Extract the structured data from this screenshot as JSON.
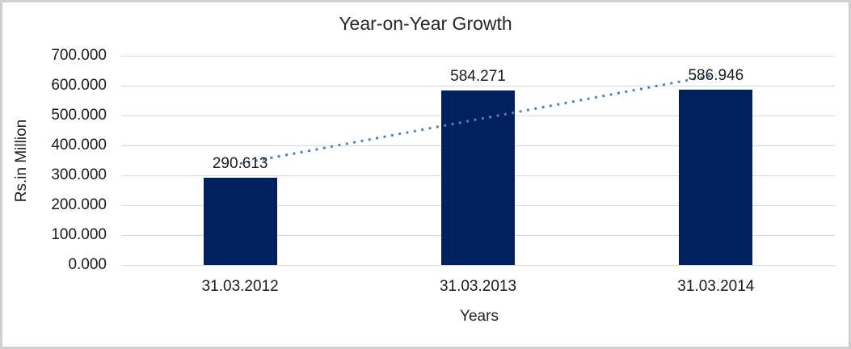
{
  "chart_data": {
    "type": "bar",
    "title": "Year-on-Year Growth",
    "xlabel": "Years",
    "ylabel": "Rs.in Million",
    "categories": [
      "31.03.2012",
      "31.03.2013",
      "31.03.2014"
    ],
    "values": [
      290.613,
      584.271,
      586.946
    ],
    "data_labels": [
      "290.613",
      "584.271",
      "586.946"
    ],
    "ylim": [
      0,
      700
    ],
    "ytick_interval": 100,
    "ytick_labels": [
      "0.000",
      "100.000",
      "200.000",
      "300.000",
      "400.000",
      "500.000",
      "600.000",
      "700.000"
    ],
    "grid": "horizontal",
    "legend_position": "none",
    "trendline": {
      "type": "linear",
      "style": "dotted",
      "fit_values_at_first_and_last_category": [
        339.1,
        635.4
      ]
    },
    "colors": {
      "bar": "#002060",
      "trendline": "#4F81BD",
      "gridline": "#D9D9D9",
      "text": "#1A1A1A",
      "border": "#CFCFCF",
      "background": "#FFFFFF"
    }
  }
}
